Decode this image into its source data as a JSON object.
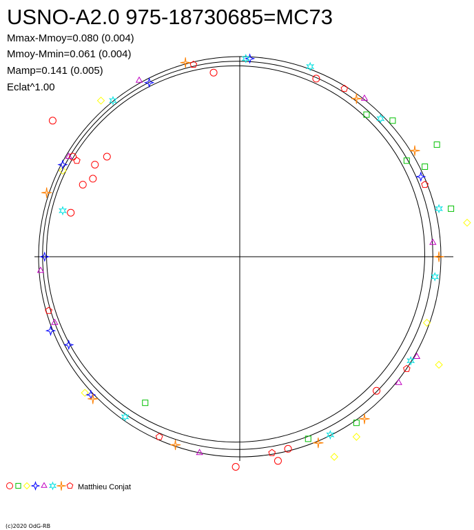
{
  "chart_data": {
    "type": "scatter",
    "title": "USNO-A2.0 975-18730685=MC73",
    "stats": [
      "Mmax-Mmoy=0.080 (0.004)",
      "Mmoy-Mmin=0.061 (0.004)",
      "Mamp=0.141 (0.005)",
      "Eclat^1.00"
    ],
    "credit": "Matthieu Conjat",
    "copyright": "(c)2020 OdG-RB",
    "grid": false,
    "legend_position": "bottom-left",
    "marker_colors": [
      "#ff0000",
      "#00c000",
      "#ffff00",
      "#0000ff",
      "#c000c0",
      "#00e0e0",
      "#ff8000",
      "#ff0000"
    ],
    "marker_shapes": [
      "circle",
      "square",
      "diamond",
      "star4",
      "triangle",
      "star6",
      "sparkle",
      "pentagon"
    ],
    "reference_circles": [
      0.94,
      0.97,
      1.0
    ],
    "series": [
      {
        "values": [
          [
            -0.13,
            0.92
          ],
          [
            -0.66,
            0.5
          ],
          [
            -0.73,
            0.39
          ],
          [
            -0.78,
            0.36
          ],
          [
            -0.84,
            0.22
          ],
          [
            -0.72,
            0.46
          ],
          [
            0.38,
            0.89
          ],
          [
            0.68,
            -0.67
          ],
          [
            0.24,
            -0.96
          ],
          [
            -0.02,
            -1.05
          ],
          [
            0.19,
            -1.02
          ],
          [
            -0.93,
            0.68
          ],
          [
            -0.83,
            0.5
          ]
        ]
      },
      {
        "values": [
          [
            0.63,
            0.71
          ],
          [
            0.76,
            0.68
          ],
          [
            0.92,
            0.45
          ],
          [
            -0.47,
            -0.73
          ],
          [
            0.34,
            -0.91
          ],
          [
            0.58,
            -0.83
          ],
          [
            1.05,
            0.24
          ],
          [
            0.98,
            0.56
          ],
          [
            0.83,
            0.48
          ]
        ]
      },
      {
        "values": [
          [
            -0.69,
            0.78
          ],
          [
            0.93,
            -0.33
          ],
          [
            0.99,
            -0.54
          ],
          [
            0.58,
            -0.9
          ],
          [
            -0.77,
            -0.68
          ],
          [
            0.47,
            -1.0
          ],
          [
            1.13,
            0.17
          ],
          [
            -0.88,
            0.43
          ]
        ]
      },
      {
        "values": [
          [
            -0.88,
            0.46
          ],
          [
            -0.97,
            0.0
          ],
          [
            -0.94,
            -0.37
          ],
          [
            -0.85,
            -0.44
          ],
          [
            0.05,
            0.99
          ],
          [
            -0.45,
            0.87
          ],
          [
            0.9,
            0.4
          ],
          [
            -0.74,
            -0.69
          ]
        ]
      },
      {
        "values": [
          [
            -0.5,
            0.88
          ],
          [
            -0.85,
            0.5
          ],
          [
            -0.99,
            -0.07
          ],
          [
            -0.92,
            -0.33
          ],
          [
            0.62,
            0.79
          ],
          [
            0.96,
            0.07
          ],
          [
            0.79,
            -0.63
          ],
          [
            -0.2,
            -0.98
          ],
          [
            0.88,
            -0.5
          ]
        ]
      },
      {
        "values": [
          [
            0.03,
            0.99
          ],
          [
            0.35,
            0.95
          ],
          [
            0.7,
            0.69
          ],
          [
            -0.63,
            0.78
          ],
          [
            -0.88,
            0.23
          ],
          [
            0.97,
            -0.1
          ],
          [
            0.85,
            -0.52
          ],
          [
            0.45,
            -0.89
          ],
          [
            -0.57,
            -0.8
          ],
          [
            0.99,
            0.24
          ]
        ]
      },
      {
        "values": [
          [
            0.58,
            0.79
          ],
          [
            0.87,
            0.53
          ],
          [
            -0.27,
            0.97
          ],
          [
            0.99,
            0.0
          ],
          [
            -0.96,
            0.32
          ],
          [
            0.39,
            -0.93
          ],
          [
            0.62,
            -0.81
          ],
          [
            -0.32,
            -0.94
          ],
          [
            -0.73,
            -0.71
          ]
        ]
      },
      {
        "values": [
          [
            -0.23,
            0.96
          ],
          [
            0.52,
            0.84
          ],
          [
            0.92,
            0.36
          ],
          [
            -0.95,
            -0.27
          ],
          [
            0.83,
            -0.56
          ],
          [
            -0.4,
            -0.9
          ],
          [
            -0.81,
            0.48
          ],
          [
            0.16,
            -0.98
          ]
        ]
      }
    ]
  }
}
